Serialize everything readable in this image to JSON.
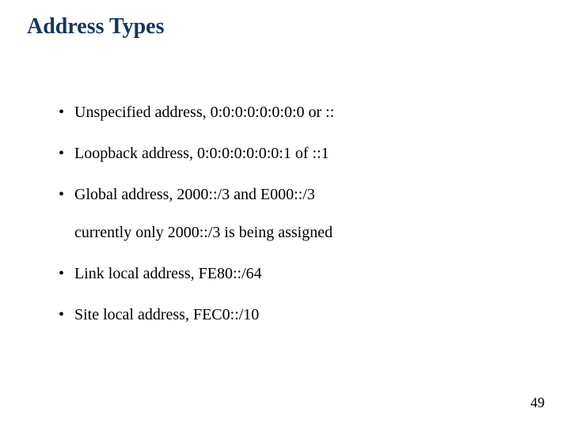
{
  "slide": {
    "title": "Address Types",
    "title_color": "#17365d",
    "title_fontsize": 28,
    "body_fontsize": 20,
    "background_color": "#ffffff",
    "text_color": "#000000",
    "bullets": [
      {
        "text": "Unspecified address, 0:0:0:0:0:0:0:0 or ::"
      },
      {
        "text": "Loopback address, 0:0:0:0:0:0:0:1 of ::1"
      },
      {
        "text": "Global address, 2000::/3 and E000::/3",
        "sub": "currently only 2000::/3 is being assigned"
      },
      {
        "text": "Link local address, FE80::/64"
      },
      {
        "text": "Site local address, FEC0::/10"
      }
    ],
    "page_number": "49"
  }
}
